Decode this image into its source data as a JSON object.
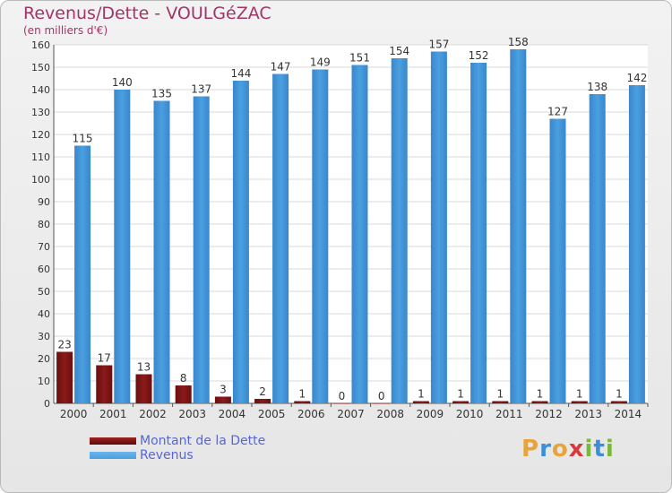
{
  "header": {
    "title": "Revenus/Dette - VOULGéZAC",
    "subtitle": "(en milliers d'€)"
  },
  "chart_data": {
    "type": "bar",
    "categories": [
      "2000",
      "2001",
      "2002",
      "2003",
      "2004",
      "2005",
      "2006",
      "2007",
      "2008",
      "2009",
      "2010",
      "2011",
      "2012",
      "2013",
      "2014"
    ],
    "series": [
      {
        "name": "Montant de la Dette",
        "color": "#8b1a1a",
        "values": [
          23,
          17,
          13,
          8,
          3,
          2,
          1,
          0,
          0,
          1,
          1,
          1,
          1,
          1,
          1
        ]
      },
      {
        "name": "Revenus",
        "color": "#4aa0e0",
        "values": [
          115,
          140,
          135,
          137,
          144,
          147,
          149,
          151,
          154,
          157,
          152,
          158,
          127,
          138,
          142
        ]
      }
    ],
    "ylim": [
      0,
      160
    ],
    "yticks": [
      0,
      10,
      20,
      30,
      40,
      50,
      60,
      70,
      80,
      90,
      100,
      110,
      120,
      130,
      140,
      150,
      160
    ],
    "grid": true,
    "legend_position": "bottom-left"
  },
  "logo": {
    "letters": [
      "P",
      "r",
      "o",
      "x",
      "i",
      "t",
      "i"
    ],
    "colors": [
      "#e8a33a",
      "#3a8fd8",
      "#e8a33a",
      "#d83a3a",
      "#7ab83a",
      "#3a8fd8",
      "#7ab83a"
    ]
  }
}
